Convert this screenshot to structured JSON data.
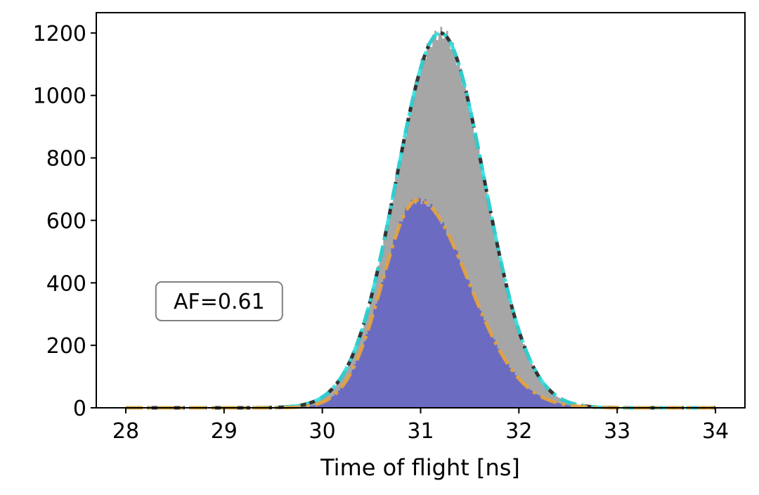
{
  "chart_data": {
    "type": "area",
    "title": "",
    "xlabel": "Time of flight [ns]",
    "ylabel": "",
    "xlim": [
      27.7,
      34.3
    ],
    "ylim": [
      0,
      1265
    ],
    "xticks": [
      28,
      29,
      30,
      31,
      32,
      33,
      34
    ],
    "yticks": [
      0,
      200,
      400,
      600,
      800,
      1000,
      1200
    ],
    "grid": false,
    "legend": "none",
    "annotation": {
      "text": "AF=0.61",
      "x": 28.95,
      "y": 340
    },
    "series": [
      {
        "kind": "histogram",
        "color": "#a6a6a6",
        "peak_center": 31.2,
        "peak_height": 1200,
        "sigma": 0.45
      },
      {
        "kind": "histogram",
        "color": "#6b6bc1",
        "peak_center": 30.97,
        "peak_height": 665,
        "sigma_left": 0.36,
        "sigma_right": 0.52
      },
      {
        "kind": "fit-line",
        "color": "#222222",
        "style": "dashed",
        "peak_center": 31.2,
        "peak_height": 1200,
        "sigma": 0.45
      },
      {
        "kind": "fit-line",
        "color": "#2fe0e0",
        "style": "dashdot",
        "peak_center": 31.2,
        "peak_height": 1200,
        "sigma": 0.45
      },
      {
        "kind": "fit-line",
        "color": "#e8a33a",
        "style": "dashdot",
        "peak_center": 30.97,
        "peak_height": 665,
        "sigma_left": 0.36,
        "sigma_right": 0.52
      }
    ],
    "colors": {
      "axis": "#000000",
      "annotation_border": "#808080"
    }
  }
}
